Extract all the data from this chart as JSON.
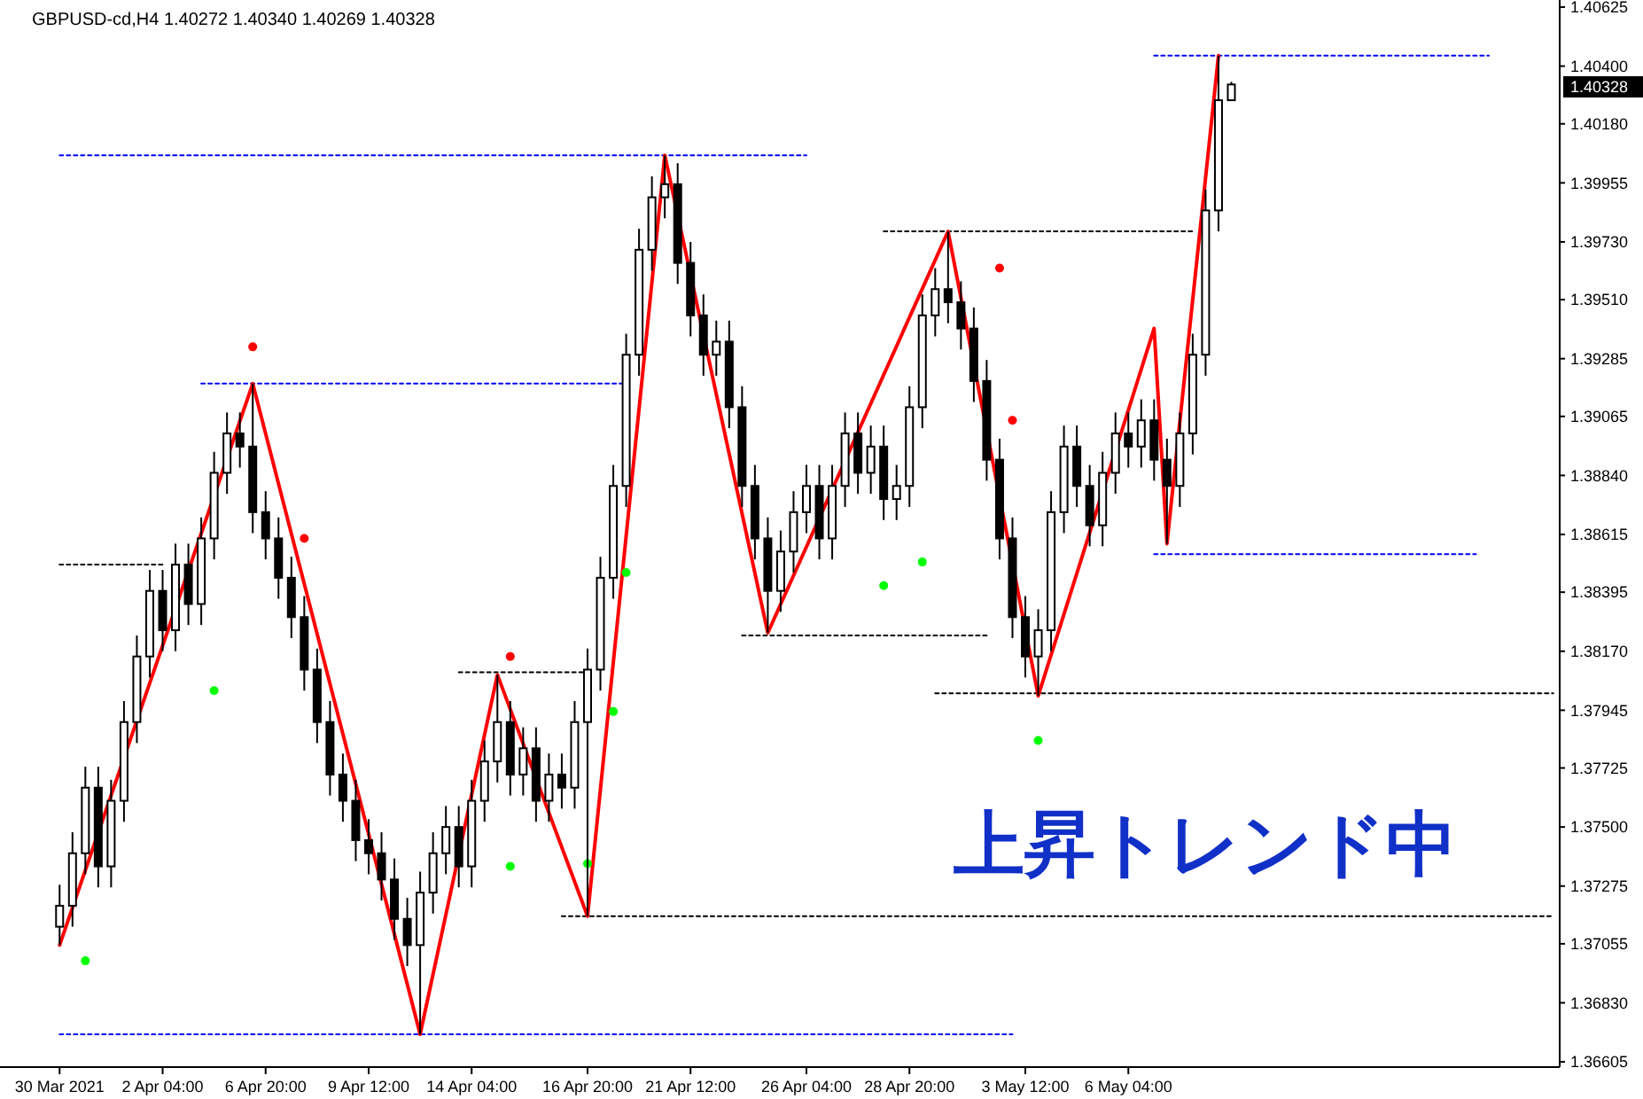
{
  "chart_data": {
    "type": "candlestick",
    "title": "GBPUSD-cd,H4  1.40272 1.40340 1.40269 1.40328",
    "categories": [
      "30 Mar 2021",
      null,
      null,
      null,
      null,
      null,
      null,
      null,
      "2 Apr 04:00",
      null,
      null,
      null,
      null,
      null,
      null,
      null,
      "6 Apr 20:00",
      null,
      null,
      null,
      null,
      null,
      null,
      null,
      "9 Apr 12:00",
      null,
      null,
      null,
      null,
      null,
      null,
      null,
      "14 Apr 04:00",
      null,
      null,
      null,
      null,
      null,
      null,
      null,
      null,
      "16 Apr 20:00",
      null,
      null,
      null,
      null,
      null,
      null,
      null,
      "21 Apr 12:00",
      null,
      null,
      null,
      null,
      null,
      null,
      null,
      null,
      "26 Apr 04:00",
      null,
      null,
      null,
      null,
      null,
      null,
      null,
      "28 Apr 20:00",
      null,
      null,
      null,
      null,
      null,
      null,
      null,
      null,
      "3 May 12:00",
      null,
      null,
      null,
      null,
      null,
      null,
      null,
      "6 May 04:00",
      null,
      null,
      null,
      null,
      null,
      null,
      null,
      null,
      null,
      null,
      null,
      null,
      null,
      null,
      null,
      null,
      null,
      null,
      null,
      null,
      null,
      null,
      null,
      null,
      null,
      null,
      null,
      null,
      null,
      null,
      null,
      null,
      null
    ],
    "ohlc": [
      [
        1.3712,
        1.3728,
        1.3705,
        1.372
      ],
      [
        1.372,
        1.3748,
        1.3712,
        1.374
      ],
      [
        1.374,
        1.3773,
        1.3732,
        1.3765
      ],
      [
        1.3765,
        1.3773,
        1.3727,
        1.3735
      ],
      [
        1.3735,
        1.3768,
        1.3727,
        1.376
      ],
      [
        1.376,
        1.3798,
        1.3752,
        1.379
      ],
      [
        1.379,
        1.3823,
        1.3782,
        1.3815
      ],
      [
        1.3815,
        1.3848,
        1.3807,
        1.384
      ],
      [
        1.384,
        1.3848,
        1.3817,
        1.3825
      ],
      [
        1.3825,
        1.3858,
        1.3817,
        1.385
      ],
      [
        1.385,
        1.3858,
        1.3827,
        1.3835
      ],
      [
        1.3835,
        1.3868,
        1.3827,
        1.386
      ],
      [
        1.386,
        1.3893,
        1.3852,
        1.3885
      ],
      [
        1.3885,
        1.3908,
        1.3877,
        1.39
      ],
      [
        1.39,
        1.3908,
        1.3887,
        1.3895
      ],
      [
        1.3895,
        1.3919,
        1.3862,
        1.387
      ],
      [
        1.387,
        1.3878,
        1.3852,
        1.386
      ],
      [
        1.386,
        1.3868,
        1.3837,
        1.3845
      ],
      [
        1.3845,
        1.3853,
        1.3822,
        1.383
      ],
      [
        1.383,
        1.3838,
        1.3802,
        1.381
      ],
      [
        1.381,
        1.3818,
        1.3782,
        1.379
      ],
      [
        1.379,
        1.3798,
        1.3762,
        1.377
      ],
      [
        1.377,
        1.3778,
        1.3752,
        1.376
      ],
      [
        1.376,
        1.3768,
        1.3737,
        1.3745
      ],
      [
        1.3745,
        1.3753,
        1.3732,
        1.374
      ],
      [
        1.374,
        1.3748,
        1.3722,
        1.373
      ],
      [
        1.373,
        1.3738,
        1.3707,
        1.3715
      ],
      [
        1.3715,
        1.3723,
        1.3697,
        1.3705
      ],
      [
        1.3705,
        1.3733,
        1.3671,
        1.3725
      ],
      [
        1.3725,
        1.3748,
        1.3717,
        1.374
      ],
      [
        1.374,
        1.3758,
        1.3732,
        1.375
      ],
      [
        1.375,
        1.3758,
        1.3727,
        1.3735
      ],
      [
        1.3735,
        1.3768,
        1.3727,
        1.376
      ],
      [
        1.376,
        1.3783,
        1.3752,
        1.3775
      ],
      [
        1.3775,
        1.3808,
        1.3767,
        1.379
      ],
      [
        1.379,
        1.3798,
        1.3762,
        1.377
      ],
      [
        1.377,
        1.3788,
        1.3762,
        1.378
      ],
      [
        1.378,
        1.3788,
        1.3752,
        1.376
      ],
      [
        1.376,
        1.3778,
        1.3752,
        1.377
      ],
      [
        1.377,
        1.3778,
        1.3757,
        1.3765
      ],
      [
        1.3765,
        1.3798,
        1.3757,
        1.379
      ],
      [
        1.379,
        1.3818,
        1.3716,
        1.381
      ],
      [
        1.381,
        1.3853,
        1.3802,
        1.3845
      ],
      [
        1.3845,
        1.3888,
        1.3837,
        1.388
      ],
      [
        1.388,
        1.3938,
        1.3872,
        1.393
      ],
      [
        1.393,
        1.3978,
        1.3922,
        1.397
      ],
      [
        1.397,
        1.3998,
        1.3962,
        1.399
      ],
      [
        1.399,
        1.4006,
        1.3982,
        1.3995
      ],
      [
        1.3995,
        1.4003,
        1.3957,
        1.3965
      ],
      [
        1.3965,
        1.3973,
        1.3937,
        1.3945
      ],
      [
        1.3945,
        1.3953,
        1.3922,
        1.393
      ],
      [
        1.393,
        1.3943,
        1.3922,
        1.3935
      ],
      [
        1.3935,
        1.3943,
        1.3902,
        1.391
      ],
      [
        1.391,
        1.3918,
        1.3872,
        1.388
      ],
      [
        1.388,
        1.3888,
        1.3852,
        1.386
      ],
      [
        1.386,
        1.3868,
        1.3824,
        1.384
      ],
      [
        1.384,
        1.3863,
        1.3832,
        1.3855
      ],
      [
        1.3855,
        1.3878,
        1.3847,
        1.387
      ],
      [
        1.387,
        1.3888,
        1.3862,
        1.388
      ],
      [
        1.388,
        1.3888,
        1.3852,
        1.386
      ],
      [
        1.386,
        1.3888,
        1.3852,
        1.388
      ],
      [
        1.388,
        1.3908,
        1.3872,
        1.39
      ],
      [
        1.39,
        1.3908,
        1.3877,
        1.3885
      ],
      [
        1.3885,
        1.3903,
        1.3877,
        1.3895
      ],
      [
        1.3895,
        1.3903,
        1.3867,
        1.3875
      ],
      [
        1.3875,
        1.3888,
        1.3867,
        1.388
      ],
      [
        1.388,
        1.3918,
        1.3872,
        1.391
      ],
      [
        1.391,
        1.3953,
        1.3902,
        1.3945
      ],
      [
        1.3945,
        1.3963,
        1.3937,
        1.3955
      ],
      [
        1.3955,
        1.3977,
        1.3942,
        1.395
      ],
      [
        1.395,
        1.3958,
        1.3932,
        1.394
      ],
      [
        1.394,
        1.3948,
        1.3912,
        1.392
      ],
      [
        1.392,
        1.3928,
        1.3882,
        1.389
      ],
      [
        1.389,
        1.3898,
        1.3852,
        1.386
      ],
      [
        1.386,
        1.3868,
        1.3822,
        1.383
      ],
      [
        1.383,
        1.3838,
        1.3807,
        1.3815
      ],
      [
        1.3815,
        1.3833,
        1.38,
        1.3825
      ],
      [
        1.3825,
        1.3878,
        1.3817,
        1.387
      ],
      [
        1.387,
        1.3903,
        1.3862,
        1.3895
      ],
      [
        1.3895,
        1.3903,
        1.3872,
        1.388
      ],
      [
        1.388,
        1.3888,
        1.3857,
        1.3865
      ],
      [
        1.3865,
        1.3893,
        1.3857,
        1.3885
      ],
      [
        1.3885,
        1.3908,
        1.3877,
        1.39
      ],
      [
        1.39,
        1.3908,
        1.3887,
        1.3895
      ],
      [
        1.3895,
        1.3913,
        1.3887,
        1.3905
      ],
      [
        1.3905,
        1.3913,
        1.3882,
        1.389
      ],
      [
        1.389,
        1.3898,
        1.3858,
        1.388
      ],
      [
        1.388,
        1.3908,
        1.3872,
        1.39
      ],
      [
        1.39,
        1.3938,
        1.3892,
        1.393
      ],
      [
        1.393,
        1.3993,
        1.3922,
        1.3985
      ],
      [
        1.3985,
        1.4044,
        1.3977,
        1.4027
      ],
      [
        1.4027,
        1.4034,
        1.4027,
        1.4033
      ],
      null,
      null,
      null,
      null,
      null,
      null,
      null,
      null,
      null,
      null,
      null,
      null,
      null,
      null,
      null,
      null,
      null,
      null,
      null,
      null,
      null,
      null,
      null,
      null,
      null
    ],
    "series": [
      {
        "type": "line",
        "color": "#ff0000",
        "values": [
          1.3705,
          null,
          null,
          null,
          null,
          null,
          null,
          null,
          null,
          null,
          null,
          null,
          null,
          null,
          null,
          1.3919,
          null,
          null,
          null,
          null,
          null,
          null,
          null,
          null,
          null,
          null,
          null,
          null,
          1.3671,
          null,
          null,
          null,
          null,
          null,
          1.3808,
          null,
          null,
          null,
          null,
          null,
          null,
          1.3716,
          null,
          null,
          null,
          null,
          null,
          1.4006,
          null,
          null,
          null,
          null,
          null,
          null,
          null,
          1.3824,
          null,
          null,
          null,
          null,
          null,
          null,
          null,
          null,
          null,
          null,
          null,
          null,
          null,
          1.3977,
          null,
          null,
          null,
          null,
          null,
          null,
          1.38,
          null,
          null,
          null,
          null,
          null,
          null,
          null,
          null,
          1.394,
          1.3858,
          null,
          null,
          null,
          1.4044,
          null,
          null,
          null,
          null,
          null,
          null,
          null,
          null,
          null,
          null,
          null,
          null,
          null,
          null,
          null,
          null,
          null,
          null,
          null,
          null,
          null,
          null,
          null,
          null,
          null,
          null
        ]
      },
      {
        "type": "scatter",
        "marker": "circle",
        "color": "#ff0000",
        "values": [
          null,
          null,
          null,
          null,
          null,
          null,
          null,
          null,
          null,
          null,
          null,
          null,
          null,
          null,
          null,
          1.3933,
          null,
          null,
          null,
          1.386,
          null,
          null,
          null,
          null,
          null,
          null,
          null,
          null,
          null,
          null,
          null,
          null,
          null,
          null,
          null,
          1.3815,
          null,
          null,
          null,
          null,
          null,
          null,
          null,
          null,
          null,
          null,
          null,
          null,
          null,
          null,
          null,
          null,
          null,
          null,
          null,
          null,
          null,
          null,
          null,
          null,
          null,
          null,
          null,
          null,
          null,
          null,
          null,
          null,
          null,
          null,
          null,
          null,
          null,
          1.3963,
          1.3905,
          null,
          null,
          null,
          null,
          null,
          null,
          null,
          null,
          null,
          null,
          null,
          null,
          null,
          null,
          null,
          null,
          null,
          null,
          null,
          null,
          null,
          null,
          null,
          null,
          null,
          null,
          null,
          null,
          null,
          null,
          null,
          null,
          null,
          null,
          null,
          null,
          null,
          null,
          null,
          null,
          null,
          null
        ]
      },
      {
        "type": "scatter",
        "marker": "circle",
        "color": "#00ff00",
        "values": [
          null,
          null,
          1.3699,
          null,
          null,
          null,
          null,
          null,
          null,
          null,
          null,
          null,
          1.3802,
          null,
          null,
          null,
          null,
          null,
          null,
          null,
          null,
          null,
          null,
          null,
          null,
          null,
          null,
          null,
          null,
          null,
          null,
          null,
          null,
          null,
          null,
          1.3735,
          null,
          null,
          null,
          null,
          null,
          1.3736,
          null,
          1.3794,
          1.3847,
          null,
          null,
          null,
          null,
          null,
          null,
          null,
          null,
          null,
          null,
          null,
          null,
          null,
          null,
          null,
          null,
          null,
          null,
          null,
          1.3842,
          null,
          null,
          1.3851,
          null,
          null,
          null,
          null,
          null,
          null,
          null,
          null,
          1.3783,
          null,
          null,
          null,
          null,
          null,
          null,
          null,
          null,
          null,
          null,
          null,
          null,
          null,
          null,
          null,
          null,
          null,
          null,
          null,
          null,
          null,
          null,
          null,
          null,
          null,
          null,
          null,
          null,
          null,
          null,
          null,
          null,
          null,
          null,
          null,
          null,
          null,
          null,
          null,
          null
        ]
      },
      {
        "type": "line",
        "line_style": "dotted",
        "color": "#0000ff",
        "values": [
          1.4006,
          null,
          null,
          null,
          null,
          null,
          null,
          null,
          null,
          null,
          null,
          null,
          null,
          null,
          null,
          null,
          null,
          null,
          null,
          null,
          null,
          null,
          null,
          null,
          null,
          null,
          null,
          null,
          null,
          null,
          null,
          null,
          null,
          null,
          null,
          null,
          null,
          null,
          null,
          null,
          null,
          null,
          null,
          null,
          null,
          null,
          null,
          null,
          null,
          null,
          null,
          null,
          null,
          null,
          null,
          null,
          null,
          null,
          1.4006,
          null,
          null,
          null,
          null,
          null,
          null,
          null,
          null,
          null,
          null,
          null,
          null,
          null,
          null,
          null,
          null,
          null,
          null,
          null,
          null,
          null,
          null,
          null,
          null,
          null,
          null,
          null,
          null,
          null,
          null,
          null,
          null,
          null,
          null,
          null,
          null,
          null,
          null,
          null,
          null,
          null,
          null,
          null,
          null,
          null,
          null,
          null,
          null,
          null,
          null,
          null,
          null,
          null,
          null,
          null,
          null,
          null,
          null
        ]
      },
      {
        "type": "line",
        "line_style": "dotted",
        "color": "#0000ff",
        "values": [
          null,
          null,
          null,
          null,
          null,
          null,
          null,
          null,
          null,
          null,
          null,
          1.3919,
          null,
          null,
          null,
          null,
          null,
          null,
          null,
          null,
          null,
          null,
          null,
          null,
          null,
          null,
          null,
          null,
          null,
          null,
          null,
          null,
          null,
          null,
          null,
          null,
          null,
          null,
          null,
          null,
          null,
          null,
          null,
          null,
          1.3919,
          null,
          null,
          null,
          null,
          null,
          null,
          null,
          null,
          null,
          null,
          null,
          null,
          null,
          null,
          null,
          null,
          null,
          null,
          null,
          null,
          null,
          null,
          null,
          null,
          null,
          null,
          null,
          null,
          null,
          null,
          null,
          null,
          null,
          null,
          null,
          null,
          null,
          null,
          null,
          null,
          null,
          null,
          null,
          null,
          null,
          null,
          null,
          null,
          null,
          null,
          null,
          null,
          null,
          null,
          null,
          null,
          null,
          null,
          null,
          null,
          null,
          null,
          null,
          null,
          null,
          null,
          null,
          null,
          null,
          null,
          null,
          null
        ]
      },
      {
        "type": "line",
        "line_style": "dotted",
        "color": "#0000ff",
        "values": [
          1.3671,
          null,
          null,
          null,
          null,
          null,
          null,
          null,
          null,
          null,
          null,
          null,
          null,
          null,
          null,
          null,
          null,
          null,
          null,
          null,
          null,
          null,
          null,
          null,
          null,
          null,
          null,
          null,
          null,
          null,
          null,
          null,
          null,
          null,
          null,
          null,
          null,
          null,
          null,
          null,
          null,
          null,
          null,
          null,
          null,
          null,
          null,
          null,
          null,
          null,
          null,
          null,
          null,
          null,
          null,
          null,
          null,
          null,
          null,
          null,
          null,
          null,
          null,
          null,
          null,
          null,
          null,
          null,
          null,
          null,
          null,
          null,
          null,
          null,
          1.3671,
          null,
          null,
          null,
          null,
          null,
          null,
          null,
          null,
          null,
          null,
          null,
          null,
          null,
          null,
          null,
          null,
          null,
          null,
          null,
          null,
          null,
          null,
          null,
          null,
          null,
          null,
          null,
          null,
          null,
          null,
          null,
          null,
          null,
          null,
          null,
          null,
          null,
          null,
          null,
          null,
          null,
          null
        ]
      },
      {
        "type": "line",
        "line_style": "dotted",
        "color": "#0000ff",
        "values": [
          null,
          null,
          null,
          null,
          null,
          null,
          null,
          null,
          null,
          null,
          null,
          null,
          null,
          null,
          null,
          null,
          null,
          null,
          null,
          null,
          null,
          null,
          null,
          null,
          null,
          null,
          null,
          null,
          null,
          null,
          null,
          null,
          null,
          null,
          null,
          null,
          null,
          null,
          null,
          null,
          null,
          null,
          null,
          null,
          null,
          null,
          null,
          null,
          null,
          null,
          null,
          null,
          null,
          null,
          null,
          null,
          null,
          null,
          null,
          null,
          null,
          null,
          null,
          null,
          null,
          null,
          null,
          null,
          null,
          null,
          null,
          null,
          null,
          null,
          null,
          null,
          null,
          null,
          null,
          null,
          null,
          null,
          null,
          null,
          null,
          1.3854,
          null,
          null,
          null,
          null,
          null,
          null,
          null,
          null,
          null,
          null,
          null,
          null,
          null,
          null,
          null,
          null,
          null,
          null,
          null,
          null,
          null,
          null,
          null,
          null,
          1.3854,
          null,
          null,
          null,
          null,
          null,
          null
        ]
      },
      {
        "type": "line",
        "line_style": "dotted",
        "color": "#0000ff",
        "values": [
          null,
          null,
          null,
          null,
          null,
          null,
          null,
          null,
          null,
          null,
          null,
          null,
          null,
          null,
          null,
          null,
          null,
          null,
          null,
          null,
          null,
          null,
          null,
          null,
          null,
          null,
          null,
          null,
          null,
          null,
          null,
          null,
          null,
          null,
          null,
          null,
          null,
          null,
          null,
          null,
          null,
          null,
          null,
          null,
          null,
          null,
          null,
          null,
          null,
          null,
          null,
          null,
          null,
          null,
          null,
          null,
          null,
          null,
          null,
          null,
          null,
          null,
          null,
          null,
          null,
          null,
          null,
          null,
          null,
          null,
          null,
          null,
          null,
          null,
          null,
          null,
          null,
          null,
          null,
          null,
          null,
          null,
          null,
          null,
          null,
          1.4044,
          null,
          null,
          null,
          null,
          null,
          null,
          null,
          null,
          null,
          null,
          null,
          null,
          null,
          null,
          null,
          null,
          null,
          null,
          null,
          null,
          null,
          null,
          null,
          null,
          null,
          1.4044,
          null,
          null,
          null,
          null,
          null
        ]
      },
      {
        "type": "line",
        "line_style": "dotted",
        "color": "#000000",
        "values": [
          1.385,
          null,
          null,
          null,
          null,
          null,
          null,
          null,
          1.385,
          null,
          null,
          null,
          null,
          null,
          null,
          null,
          null,
          null,
          null,
          null,
          null,
          null,
          null,
          null,
          null,
          null,
          null,
          null,
          null,
          null,
          null,
          null,
          null,
          null,
          null,
          null,
          null,
          null,
          null,
          null,
          null,
          null,
          null,
          null,
          null,
          null,
          null,
          null,
          null,
          null,
          null,
          null,
          null,
          null,
          null,
          null,
          null,
          null,
          null,
          null,
          null,
          null,
          null,
          null,
          null,
          null,
          null,
          null,
          null,
          null,
          null,
          null,
          null,
          null,
          null,
          null,
          null,
          null,
          null,
          null,
          null,
          null,
          null,
          null,
          null,
          null,
          null,
          null,
          null,
          null,
          null,
          null,
          null,
          null,
          null,
          null,
          null,
          null,
          null,
          null,
          null,
          null,
          null,
          null,
          null,
          null,
          null,
          null,
          null,
          null,
          null,
          null,
          null,
          null,
          null,
          null,
          null
        ]
      },
      {
        "type": "line",
        "line_style": "dotted",
        "color": "#000000",
        "values": [
          null,
          null,
          null,
          null,
          null,
          null,
          null,
          null,
          null,
          null,
          null,
          null,
          null,
          null,
          null,
          null,
          null,
          null,
          null,
          null,
          null,
          null,
          null,
          null,
          null,
          null,
          null,
          null,
          null,
          null,
          null,
          1.3809,
          null,
          null,
          null,
          null,
          null,
          null,
          null,
          null,
          null,
          1.3809,
          null,
          null,
          null,
          null,
          null,
          null,
          null,
          null,
          null,
          null,
          null,
          null,
          null,
          null,
          null,
          null,
          null,
          null,
          null,
          null,
          null,
          null,
          null,
          null,
          null,
          null,
          null,
          null,
          null,
          null,
          null,
          null,
          null,
          null,
          null,
          null,
          null,
          null,
          null,
          null,
          null,
          null,
          null,
          null,
          null,
          null,
          null,
          null,
          null,
          null,
          null,
          null,
          null,
          null,
          null,
          null,
          null,
          null,
          null,
          null,
          null,
          null,
          null,
          null,
          null,
          null,
          null,
          null,
          null,
          null,
          null,
          null,
          null,
          null,
          null
        ]
      },
      {
        "type": "line",
        "line_style": "dotted",
        "color": "#000000",
        "values": [
          null,
          null,
          null,
          null,
          null,
          null,
          null,
          null,
          null,
          null,
          null,
          null,
          null,
          null,
          null,
          null,
          null,
          null,
          null,
          null,
          null,
          null,
          null,
          null,
          null,
          null,
          null,
          null,
          null,
          null,
          null,
          null,
          null,
          null,
          null,
          null,
          null,
          null,
          null,
          1.3716,
          null,
          null,
          null,
          null,
          null,
          null,
          null,
          null,
          null,
          null,
          null,
          null,
          null,
          null,
          null,
          null,
          null,
          null,
          null,
          null,
          null,
          null,
          null,
          null,
          null,
          null,
          null,
          null,
          null,
          null,
          null,
          null,
          null,
          null,
          null,
          null,
          null,
          null,
          null,
          null,
          null,
          null,
          null,
          null,
          null,
          null,
          null,
          null,
          null,
          null,
          null,
          null,
          null,
          null,
          null,
          null,
          null,
          null,
          null,
          null,
          null,
          null,
          null,
          null,
          null,
          null,
          null,
          null,
          null,
          null,
          null,
          null,
          null,
          null,
          null,
          null,
          1.3716
        ]
      },
      {
        "type": "line",
        "line_style": "dotted",
        "color": "#000000",
        "values": [
          null,
          null,
          null,
          null,
          null,
          null,
          null,
          null,
          null,
          null,
          null,
          null,
          null,
          null,
          null,
          null,
          null,
          null,
          null,
          null,
          null,
          null,
          null,
          null,
          null,
          null,
          null,
          null,
          null,
          null,
          null,
          null,
          null,
          null,
          null,
          null,
          null,
          null,
          null,
          null,
          null,
          null,
          null,
          null,
          null,
          null,
          null,
          null,
          null,
          null,
          null,
          null,
          null,
          1.3823,
          null,
          null,
          null,
          null,
          null,
          null,
          null,
          null,
          null,
          null,
          null,
          null,
          null,
          null,
          null,
          null,
          null,
          null,
          1.3823,
          null,
          null,
          null,
          null,
          null,
          null,
          null,
          null,
          null,
          null,
          null,
          null,
          null,
          null,
          null,
          null,
          null,
          null,
          null,
          null,
          null,
          null,
          null,
          null,
          null,
          null,
          null,
          null,
          null,
          null,
          null,
          null,
          null,
          null,
          null,
          null,
          null,
          null,
          null,
          null,
          null,
          null,
          null,
          null
        ]
      },
      {
        "type": "line",
        "line_style": "dotted",
        "color": "#000000",
        "values": [
          null,
          null,
          null,
          null,
          null,
          null,
          null,
          null,
          null,
          null,
          null,
          null,
          null,
          null,
          null,
          null,
          null,
          null,
          null,
          null,
          null,
          null,
          null,
          null,
          null,
          null,
          null,
          null,
          null,
          null,
          null,
          null,
          null,
          null,
          null,
          null,
          null,
          null,
          null,
          null,
          null,
          null,
          null,
          null,
          null,
          null,
          null,
          null,
          null,
          null,
          null,
          null,
          null,
          null,
          null,
          null,
          null,
          null,
          null,
          null,
          null,
          null,
          null,
          null,
          1.3977,
          null,
          null,
          null,
          null,
          null,
          null,
          null,
          null,
          null,
          null,
          null,
          null,
          null,
          null,
          null,
          null,
          null,
          null,
          null,
          null,
          null,
          null,
          null,
          1.3977,
          null,
          null,
          null,
          null,
          null,
          null,
          null,
          null,
          null,
          null,
          null,
          null,
          null,
          null,
          null,
          null,
          null,
          null,
          null,
          null,
          null,
          null,
          null,
          null,
          null,
          null,
          null,
          null
        ]
      },
      {
        "type": "line",
        "line_style": "dotted",
        "color": "#000000",
        "values": [
          null,
          null,
          null,
          null,
          null,
          null,
          null,
          null,
          null,
          null,
          null,
          null,
          null,
          null,
          null,
          null,
          null,
          null,
          null,
          null,
          null,
          null,
          null,
          null,
          null,
          null,
          null,
          null,
          null,
          null,
          null,
          null,
          null,
          null,
          null,
          null,
          null,
          null,
          null,
          null,
          null,
          null,
          null,
          null,
          null,
          null,
          null,
          null,
          null,
          null,
          null,
          null,
          null,
          null,
          null,
          null,
          null,
          null,
          null,
          null,
          null,
          null,
          null,
          null,
          null,
          null,
          null,
          null,
          1.3801,
          null,
          null,
          null,
          null,
          null,
          null,
          null,
          null,
          null,
          null,
          null,
          null,
          null,
          null,
          null,
          null,
          null,
          null,
          null,
          null,
          null,
          null,
          null,
          null,
          null,
          null,
          null,
          null,
          null,
          null,
          null,
          null,
          null,
          null,
          null,
          null,
          null,
          null,
          null,
          null,
          null,
          null,
          null,
          null,
          null,
          null,
          null,
          1.3801
        ]
      }
    ],
    "annotations": [
      "1.40328",
      "上昇トレンド中"
    ],
    "ylim": [
      1.36585,
      1.40652
    ],
    "yticks": [
      1.40625,
      {
        "value": 1.404,
        "label": "1.40400"
      },
      {
        "value": 1.4018,
        "label": "1.40180"
      },
      1.39955,
      {
        "value": 1.3973,
        "label": "1.39730"
      },
      {
        "value": 1.3951,
        "label": "1.39510"
      },
      1.39285,
      1.39065,
      {
        "value": 1.3884,
        "label": "1.38840"
      },
      1.38615,
      1.38395,
      {
        "value": 1.3817,
        "label": "1.38170"
      },
      1.37945,
      1.37725,
      {
        "value": 1.375,
        "label": "1.37500"
      },
      1.37275,
      1.37055,
      {
        "value": 1.3683,
        "label": "1.36830"
      },
      1.36605
    ]
  }
}
